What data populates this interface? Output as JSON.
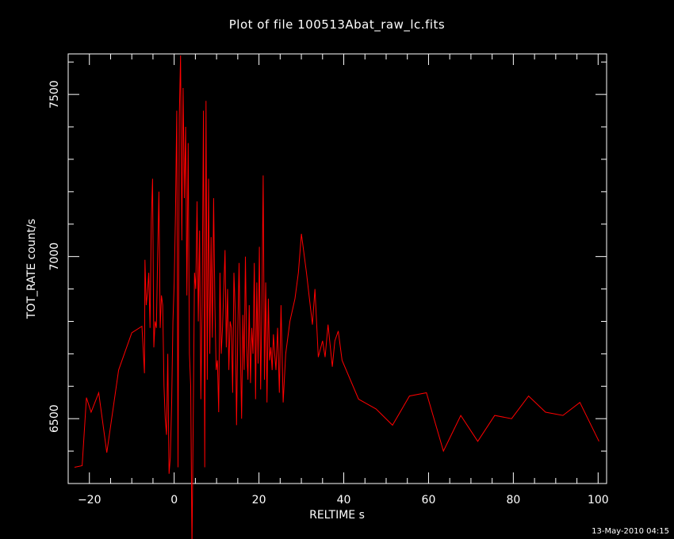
{
  "title": "Plot of file 100513Abat_raw_lc.fits",
  "footer_timestamp": "13-May-2010 04:15",
  "colors": {
    "background": "#000000",
    "axes": "#ffffff",
    "series": "#ff0000"
  },
  "chart_data": {
    "type": "line",
    "title": "Plot of file 100513Abat_raw_lc.fits",
    "xlabel": "RELTIME   s",
    "ylabel": "TOT_RATE   count/s",
    "xlim": [
      -25,
      102
    ],
    "ylim": [
      6300,
      7625
    ],
    "x_ticks": [
      -20,
      0,
      20,
      40,
      60,
      80,
      100
    ],
    "x_tick_labels": [
      "−20",
      "0",
      "20",
      "40",
      "60",
      "80",
      "100"
    ],
    "y_ticks": [
      6500,
      7000,
      7500
    ],
    "y_tick_labels": [
      "6500",
      "7000",
      "7500"
    ],
    "grid": false,
    "series": [
      {
        "color": "#ff0000",
        "x": [
          -23.5,
          -21.7,
          -20.7,
          -19.6,
          -17.8,
          -15.9,
          -13.1,
          -10.0,
          -7.6,
          -7.0,
          -6.9,
          -6.6,
          -6.3,
          -6.0,
          -5.7,
          -5.4,
          -5.1,
          -4.8,
          -4.5,
          -4.2,
          -3.9,
          -3.6,
          -3.3,
          -3.0,
          -2.7,
          -2.4,
          -2.1,
          -1.8,
          -1.5,
          -1.2,
          -0.9,
          -0.6,
          -0.3,
          0.0,
          0.3,
          0.6,
          0.9,
          1.2,
          1.5,
          1.8,
          2.1,
          2.4,
          2.7,
          3.0,
          3.3,
          3.6,
          3.9,
          4.2,
          4.5,
          4.8,
          5.1,
          5.4,
          5.7,
          6.0,
          6.3,
          6.6,
          6.9,
          7.2,
          7.5,
          7.8,
          8.1,
          8.4,
          8.7,
          9.0,
          9.3,
          9.6,
          9.9,
          10.2,
          10.5,
          10.8,
          11.1,
          11.4,
          11.7,
          12.0,
          12.3,
          12.6,
          12.9,
          13.2,
          13.5,
          13.8,
          14.1,
          14.4,
          14.7,
          15.0,
          15.3,
          15.6,
          15.9,
          16.2,
          16.5,
          16.8,
          17.1,
          17.4,
          17.7,
          18.0,
          18.3,
          18.6,
          18.9,
          19.2,
          19.5,
          19.8,
          20.1,
          20.4,
          20.7,
          21.0,
          21.3,
          21.6,
          21.9,
          22.2,
          22.5,
          22.8,
          23.1,
          23.4,
          23.7,
          24.0,
          24.4,
          24.8,
          25.2,
          25.7,
          26.3,
          27.3,
          28.5,
          29.3,
          30.0,
          31.2,
          32.6,
          33.2,
          34.0,
          35.0,
          35.6,
          36.3,
          37.3,
          37.9,
          38.7,
          39.6,
          43.5,
          47.6,
          51.5,
          55.5,
          59.5,
          63.5,
          67.6,
          71.6,
          75.6,
          79.6,
          83.6,
          87.6,
          91.7,
          95.7,
          100.2
        ],
        "values": [
          6350,
          6355,
          6565,
          6520,
          6580,
          6395,
          6650,
          6765,
          6785,
          6640,
          6990,
          6850,
          6890,
          6950,
          6780,
          7110,
          7240,
          6720,
          6800,
          6780,
          7000,
          7200,
          6780,
          6880,
          6850,
          6600,
          6500,
          6450,
          6700,
          6330,
          6380,
          6550,
          6800,
          6920,
          7130,
          7450,
          6350,
          7430,
          7620,
          7050,
          7520,
          7180,
          7400,
          6880,
          7350,
          6700,
          6600,
          6100,
          6500,
          6950,
          6900,
          7170,
          6800,
          7080,
          6560,
          6850,
          7450,
          6350,
          7480,
          6620,
          7240,
          6700,
          7060,
          6750,
          7180,
          6850,
          6650,
          6680,
          6520,
          6950,
          6700,
          6780,
          6900,
          7020,
          6720,
          6900,
          6650,
          6800,
          6780,
          6580,
          6950,
          6830,
          6480,
          6770,
          6980,
          6720,
          6500,
          6820,
          6650,
          7000,
          6720,
          6620,
          6850,
          6610,
          6780,
          6700,
          6980,
          6560,
          6920,
          6670,
          7030,
          6590,
          6850,
          7250,
          6620,
          6920,
          6550,
          6870,
          6680,
          6720,
          6650,
          6760,
          6700,
          6650,
          6780,
          6580,
          6850,
          6550,
          6700,
          6800,
          6870,
          6950,
          7070,
          6950,
          6790,
          6900,
          6690,
          6740,
          6690,
          6790,
          6660,
          6740,
          6770,
          6680,
          6560,
          6530,
          6480,
          6570,
          6580,
          6400,
          6510,
          6430,
          6510,
          6500,
          6570,
          6520,
          6510,
          6550,
          6430
        ]
      }
    ]
  }
}
